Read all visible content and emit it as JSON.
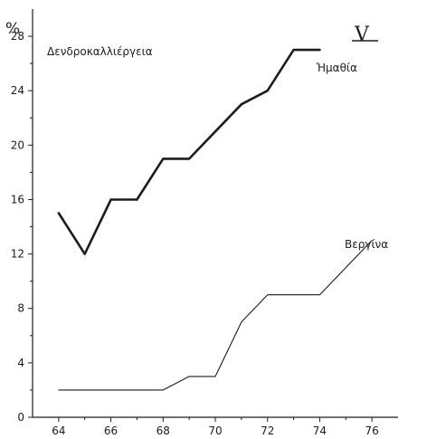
{
  "chart_data": {
    "type": "line",
    "title": "Δενδροκαλλιέργεια",
    "panel_label": "V",
    "ylabel": "%",
    "xlabel": "",
    "xlim": [
      63,
      77
    ],
    "ylim": [
      0,
      30
    ],
    "xticks": [
      64,
      66,
      68,
      70,
      72,
      74,
      76
    ],
    "yticks": [
      0,
      4,
      8,
      12,
      16,
      20,
      24,
      28
    ],
    "grid": false,
    "series": [
      {
        "name": "Ἡμαθία",
        "style": "bold",
        "x": [
          64,
          65,
          66,
          67,
          68,
          69,
          70,
          71,
          72,
          73,
          74
        ],
        "y": [
          15,
          12,
          16,
          16,
          19,
          19,
          21,
          23,
          24,
          27,
          27
        ]
      },
      {
        "name": "Βεργίνα",
        "style": "thin",
        "x": [
          64,
          67,
          68,
          69,
          70,
          71,
          72,
          74,
          76
        ],
        "y": [
          2,
          2,
          2,
          3,
          3,
          7,
          9,
          9,
          13
        ]
      }
    ]
  },
  "colors": {
    "ink": "#1c1c1c",
    "background": "#ffffff"
  }
}
